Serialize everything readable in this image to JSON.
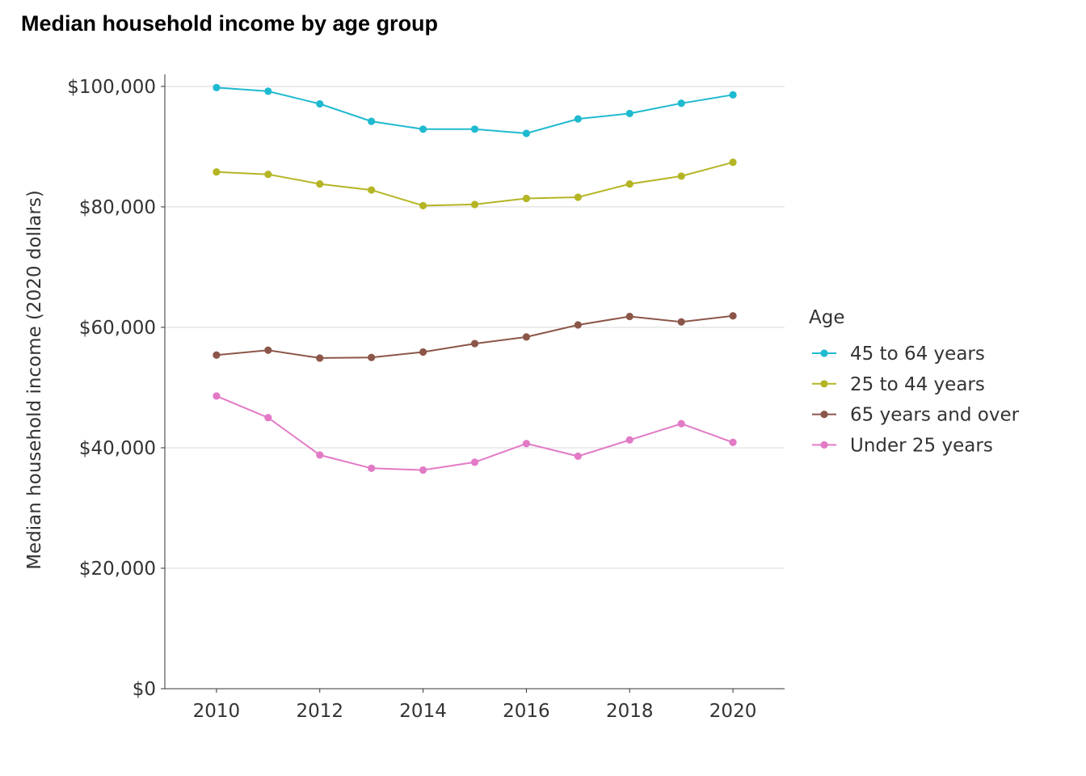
{
  "chart_data": {
    "type": "line",
    "title": "Median household income by age group",
    "xlabel": "",
    "ylabel": "Median household income (2020 dollars)",
    "x": [
      2010,
      2011,
      2012,
      2013,
      2014,
      2015,
      2016,
      2017,
      2018,
      2019,
      2020
    ],
    "xlim": [
      2009,
      2021
    ],
    "ylim": [
      0,
      102000
    ],
    "x_ticks": [
      2010,
      2012,
      2014,
      2016,
      2018,
      2020
    ],
    "x_tick_labels": [
      "2010",
      "2012",
      "2014",
      "2016",
      "2018",
      "2020"
    ],
    "y_ticks": [
      0,
      20000,
      40000,
      60000,
      80000,
      100000
    ],
    "y_tick_labels": [
      "$0",
      "$20,000",
      "$40,000",
      "$60,000",
      "$80,000",
      "$100,000"
    ],
    "grid": "horizontal major",
    "legend_title": "Age",
    "legend_position": "right",
    "series": [
      {
        "name": "45 to 64 years",
        "color": "#1FBAD0",
        "values": [
          99800,
          99200,
          97100,
          94200,
          92900,
          92900,
          92200,
          94600,
          95500,
          97200,
          98600
        ]
      },
      {
        "name": "25 to 44 years",
        "color": "#B4B524",
        "values": [
          85800,
          85400,
          83800,
          82800,
          80200,
          80400,
          81400,
          81600,
          83800,
          85100,
          87400
        ]
      },
      {
        "name": "65 years and over",
        "color": "#8B5649",
        "values": [
          55400,
          56200,
          54900,
          55000,
          55900,
          57300,
          58400,
          60400,
          61800,
          60900,
          61900
        ]
      },
      {
        "name": "Under 25 years",
        "color": "#E27AC6",
        "values": [
          48600,
          45000,
          38800,
          36600,
          36300,
          37600,
          40700,
          38600,
          41300,
          44000,
          40900
        ]
      }
    ]
  }
}
